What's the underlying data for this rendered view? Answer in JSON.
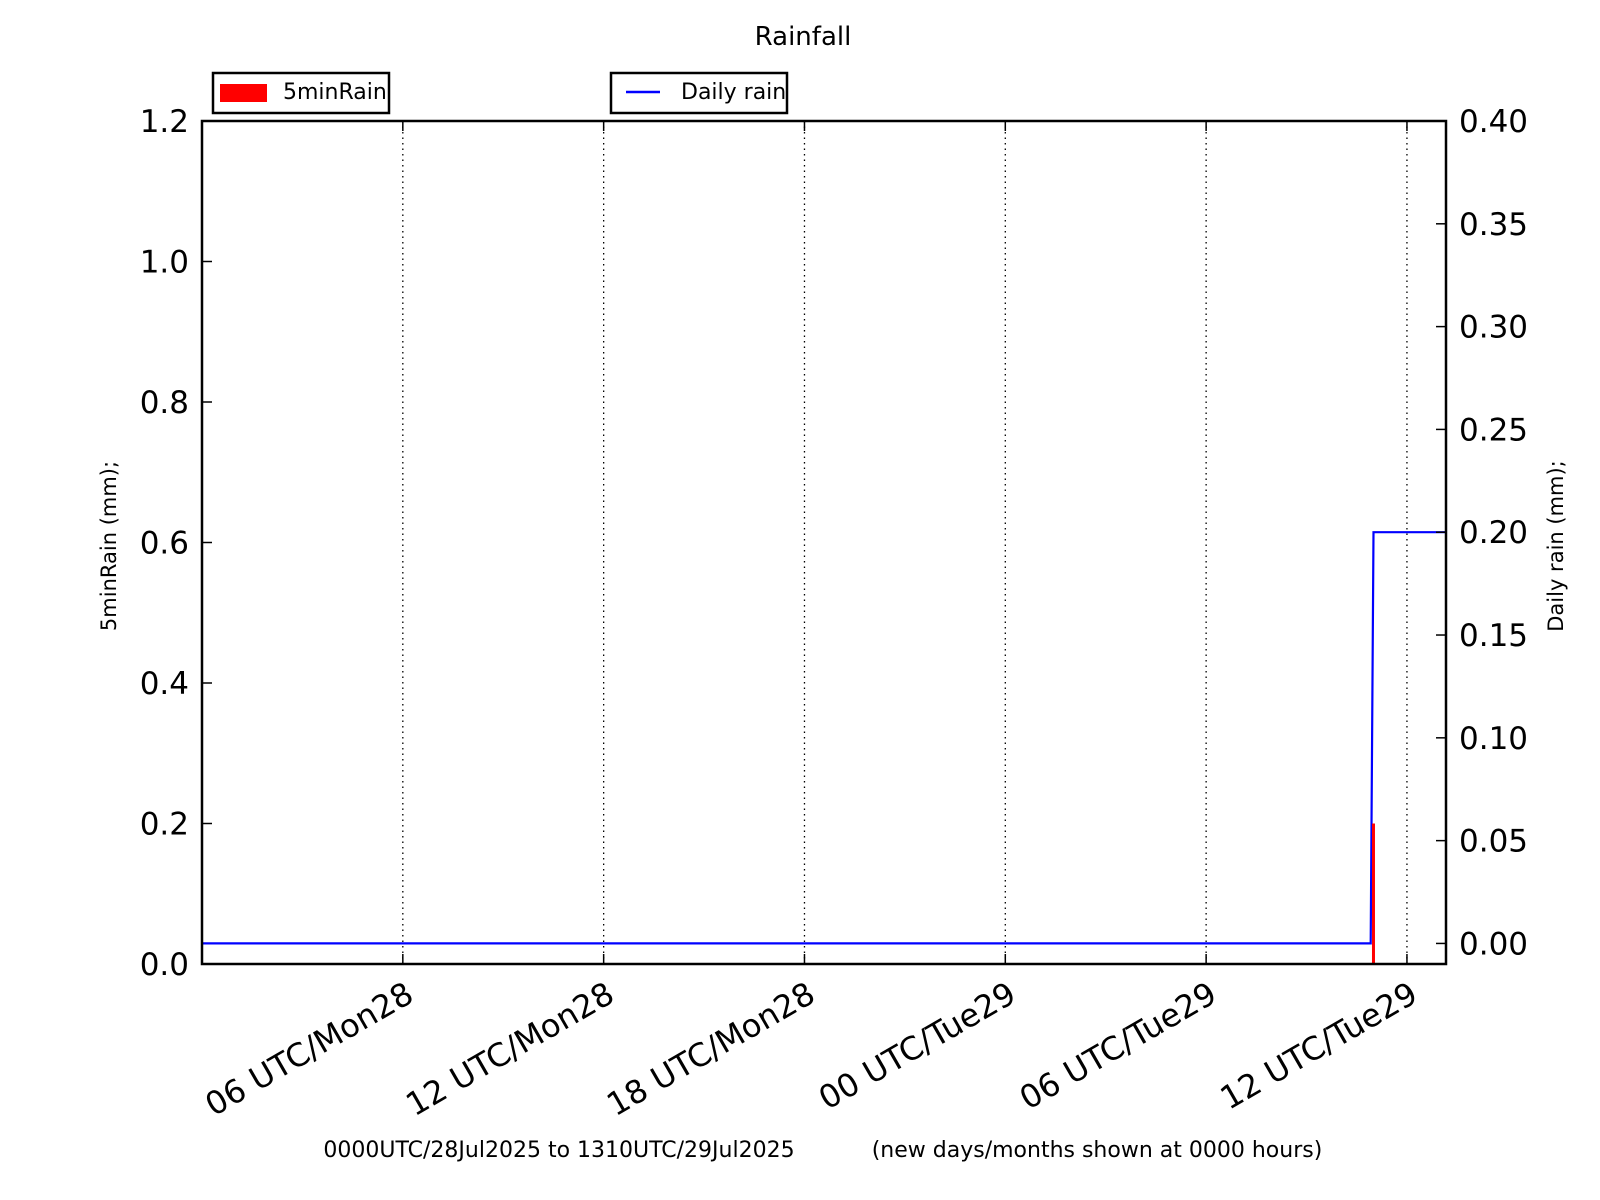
{
  "chart_data": {
    "type": "bar",
    "title": "Rainfall",
    "x_range": [
      "2025-07-28 00:00",
      "2025-07-29 13:10"
    ],
    "x_ticks": [
      {
        "time": "2025-07-28 06:00",
        "label": "06 UTC/Mon28"
      },
      {
        "time": "2025-07-28 12:00",
        "label": "12 UTC/Mon28"
      },
      {
        "time": "2025-07-28 18:00",
        "label": "18 UTC/Mon28"
      },
      {
        "time": "2025-07-29 00:00",
        "label": "00 UTC/Tue29"
      },
      {
        "time": "2025-07-29 06:00",
        "label": "06 UTC/Tue29"
      },
      {
        "time": "2025-07-29 12:00",
        "label": "12 UTC/Tue29"
      }
    ],
    "grid": "vertical-dotted",
    "left_axis": {
      "label": "5minRain  (mm);",
      "ylim": [
        0.0,
        1.2
      ],
      "ticks": [
        "0.0",
        "0.2",
        "0.4",
        "0.6",
        "0.8",
        "1.0",
        "1.2"
      ]
    },
    "right_axis": {
      "label": "Daily rain  (mm);",
      "ylim": [
        -0.01,
        0.4
      ],
      "ticks": [
        "0.00",
        "0.05",
        "0.10",
        "0.15",
        "0.20",
        "0.25",
        "0.30",
        "0.35",
        "0.40"
      ]
    },
    "series": [
      {
        "name": "5minRain",
        "kind": "bar",
        "axis": "left",
        "color": "#ff0000",
        "points": [
          {
            "time": "2025-07-29 11:00",
            "value": 0.2
          }
        ]
      },
      {
        "name": "Daily rain",
        "kind": "step-line",
        "axis": "right",
        "color": "#0000ff",
        "points": [
          {
            "time": "2025-07-28 00:00",
            "value": 0.0
          },
          {
            "time": "2025-07-29 10:55",
            "value": 0.0
          },
          {
            "time": "2025-07-29 11:00",
            "value": 0.2
          },
          {
            "time": "2025-07-29 13:10",
            "value": 0.2
          }
        ]
      }
    ],
    "legend": [
      {
        "label": "5minRain",
        "placement": "top-left"
      },
      {
        "label": "Daily rain",
        "placement": "top-center"
      }
    ],
    "footer": {
      "range_text": "0000UTC/28Jul2025 to 1310UTC/29Jul2025",
      "note": "(new days/months shown at 0000 hours)"
    }
  }
}
